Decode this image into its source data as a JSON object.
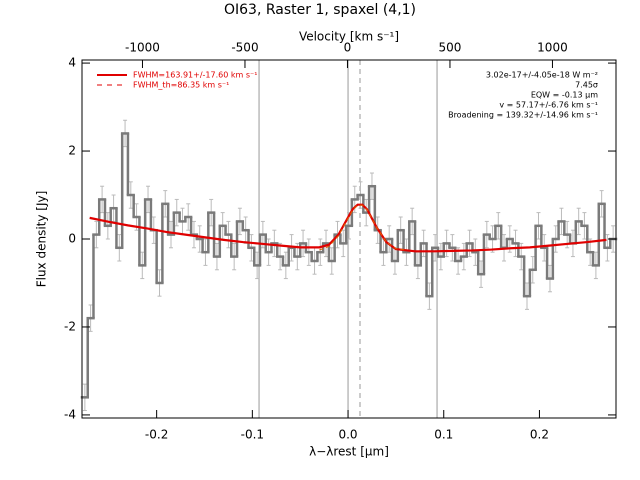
{
  "chart_data": {
    "type": "spectrum",
    "title": "OI63, Raster 1, spaxel (4,1)",
    "x_label": "λ−λ​rest [μm]",
    "y_label": "Flux density [Jy]",
    "x2_label": "Velocity [km s⁻¹]",
    "xlim": [
      -0.278,
      0.28
    ],
    "xticks": [
      -0.2,
      -0.1,
      {
        "value": 0,
        "label": "0.0"
      },
      0.1,
      0.2
    ],
    "x2lim": [
      -1295,
      1310
    ],
    "x2ticks": [
      -1000,
      -500,
      0,
      500,
      1000
    ],
    "ylim": [
      -4.07,
      4.07
    ],
    "yticks": [
      -4,
      -2,
      0,
      2,
      4
    ],
    "vlines": [
      -0.093,
      0,
      0.093
    ],
    "vline_color": "#999999",
    "dashed_vline": 0.0125,
    "series": [
      {
        "color": "#7a7a7a",
        "error_color": "#bbbbbb",
        "error": 0.3,
        "x": [
          -0.275,
          -0.269,
          -0.263,
          -0.257,
          -0.251,
          -0.245,
          -0.239,
          -0.233,
          -0.227,
          -0.221,
          -0.215,
          -0.209,
          -0.203,
          -0.197,
          -0.191,
          -0.185,
          -0.179,
          -0.173,
          -0.167,
          -0.161,
          -0.155,
          -0.149,
          -0.143,
          -0.137,
          -0.131,
          -0.125,
          -0.119,
          -0.113,
          -0.107,
          -0.101,
          -0.095,
          -0.089,
          -0.083,
          -0.077,
          -0.071,
          -0.065,
          -0.059,
          -0.053,
          -0.047,
          -0.041,
          -0.035,
          -0.029,
          -0.023,
          -0.017,
          -0.011,
          -0.005,
          0.001,
          0.007,
          0.013,
          0.019,
          0.025,
          0.031,
          0.037,
          0.043,
          0.049,
          0.055,
          0.061,
          0.067,
          0.073,
          0.079,
          0.085,
          0.091,
          0.097,
          0.103,
          0.109,
          0.115,
          0.121,
          0.127,
          0.133,
          0.139,
          0.145,
          0.151,
          0.157,
          0.163,
          0.169,
          0.175,
          0.181,
          0.187,
          0.193,
          0.199,
          0.205,
          0.211,
          0.217,
          0.223,
          0.229,
          0.235,
          0.241,
          0.247,
          0.253,
          0.259,
          0.265,
          0.271,
          0.277
        ],
        "values": [
          -3.6,
          -1.8,
          0.1,
          0.9,
          0.3,
          0.7,
          -0.2,
          2.4,
          1.0,
          0.5,
          -0.6,
          0.9,
          0.2,
          -1.0,
          0.8,
          0.1,
          0.6,
          0.4,
          0.5,
          0.1,
          0.0,
          -0.3,
          0.6,
          -0.4,
          0.3,
          0.1,
          -0.4,
          0.4,
          0.2,
          -0.2,
          -0.6,
          0.1,
          -0.3,
          -0.1,
          -0.4,
          -0.6,
          -0.2,
          -0.4,
          -0.1,
          -0.3,
          -0.5,
          -0.3,
          -0.1,
          -0.5,
          0.1,
          -0.1,
          0.3,
          0.9,
          1.0,
          0.6,
          1.2,
          0.2,
          -0.3,
          0.0,
          -0.5,
          0.2,
          -0.3,
          0.4,
          -0.6,
          -0.1,
          -1.3,
          -0.2,
          -0.4,
          -0.1,
          -0.2,
          -0.5,
          -0.4,
          -0.1,
          -0.3,
          -0.8,
          0.1,
          0.0,
          0.3,
          -0.2,
          0.0,
          -0.1,
          -0.4,
          -1.3,
          -0.7,
          0.3,
          -0.2,
          -0.9,
          0.0,
          0.4,
          0.1,
          -0.1,
          0.4,
          0.3,
          -0.3,
          -0.6,
          0.8,
          -0.2,
          0.0
        ]
      },
      {
        "name": "FWHM=163.91+/-17.60 km s⁻¹",
        "color": "#e00000",
        "dashed": false,
        "x": [
          -0.27,
          -0.25,
          -0.23,
          -0.21,
          -0.19,
          -0.17,
          -0.15,
          -0.13,
          -0.11,
          -0.09,
          -0.07,
          -0.05,
          -0.03,
          -0.02,
          -0.01,
          0,
          0.005,
          0.01,
          0.015,
          0.02,
          0.03,
          0.04,
          0.05,
          0.07,
          0.09,
          0.11,
          0.13,
          0.15,
          0.17,
          0.19,
          0.21,
          0.23,
          0.25,
          0.27
        ],
        "values": [
          0.48,
          0.39,
          0.31,
          0.24,
          0.16,
          0.1,
          0.04,
          -0.02,
          -0.07,
          -0.11,
          -0.15,
          -0.19,
          -0.19,
          -0.13,
          0.1,
          0.49,
          0.68,
          0.78,
          0.78,
          0.67,
          0.26,
          -0.07,
          -0.23,
          -0.28,
          -0.28,
          -0.27,
          -0.26,
          -0.24,
          -0.21,
          -0.19,
          -0.15,
          -0.11,
          -0.07,
          -0.02
        ]
      },
      {
        "name": "FWHM_th=86.35 km s⁻¹",
        "color": "#e06000",
        "dashed": true,
        "x": [
          -0.03,
          -0.02,
          -0.01,
          0,
          0.005,
          0.01,
          0.015,
          0.02,
          0.03,
          0.04,
          0.05,
          0.06
        ],
        "values": [
          -0.25,
          -0.17,
          0.07,
          0.47,
          0.66,
          0.77,
          0.77,
          0.66,
          0.26,
          -0.07,
          -0.22,
          -0.25
        ]
      }
    ],
    "annotations": [
      "3.02e-17+/-4.05e-18 W m⁻²",
      "7.45σ",
      "EQW = -0.13 μm",
      "v = 57.17+/-6.76 km s⁻¹",
      "Broadening = 139.32+/-14.96 km s⁻¹"
    ]
  }
}
